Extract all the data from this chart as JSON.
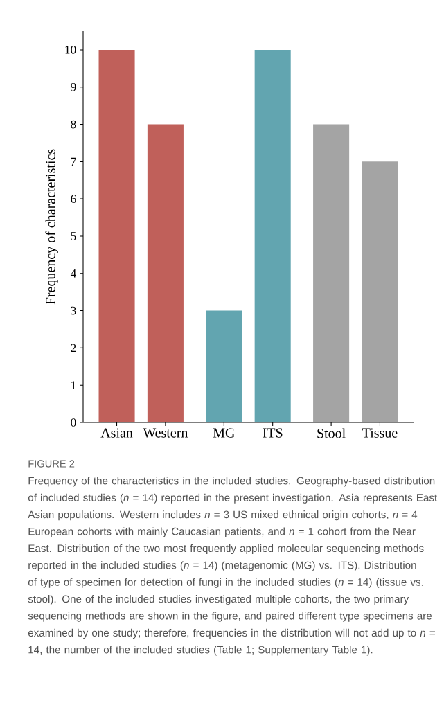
{
  "chart_data": {
    "type": "bar",
    "title": "FIGURE 2",
    "categories": [
      "Asian",
      "Western",
      "MG",
      "ITS",
      "Stool",
      "Tissue"
    ],
    "values": [
      10,
      8,
      3,
      10,
      8,
      7
    ],
    "colors": [
      "#c0605a",
      "#c0605a",
      "#62a5b0",
      "#62a5b0",
      "#a4a4a4",
      "#a4a4a4"
    ],
    "ylabel": "Frequency of characteristics",
    "ylim": [
      0,
      10.5
    ],
    "yticks": [
      0,
      1,
      2,
      3,
      4,
      5,
      6,
      7,
      8,
      9,
      10
    ],
    "annotations": [
      "Frequency of the characteristics in the included studies. Geography-based distribution of included studies (*n* = 14) reported in the present investigation. Asia represents East Asian populations. Western includes *n* = 3 US mixed ethnical origin cohorts, *n* = 4 European cohorts with mainly Caucasian patients, and *n* = 1 cohort from the Near East. Distribution of the two most frequently applied molecular sequencing methods reported in the included studies (*n* = 14) (metagenomic (MG) vs. ITS). Distribution of type of specimen for detection of fungi in the included studies (*n* = 14) (tissue vs. stool). One of the included studies investigated multiple cohorts, the two primary sequencing methods are shown in the figure, and paired different type specimens are examined by one study; therefore, frequencies in the distribution will not add up to *n* = 14, the number of the included studies (Table 1; Supplementary Table 1)."
    ]
  }
}
